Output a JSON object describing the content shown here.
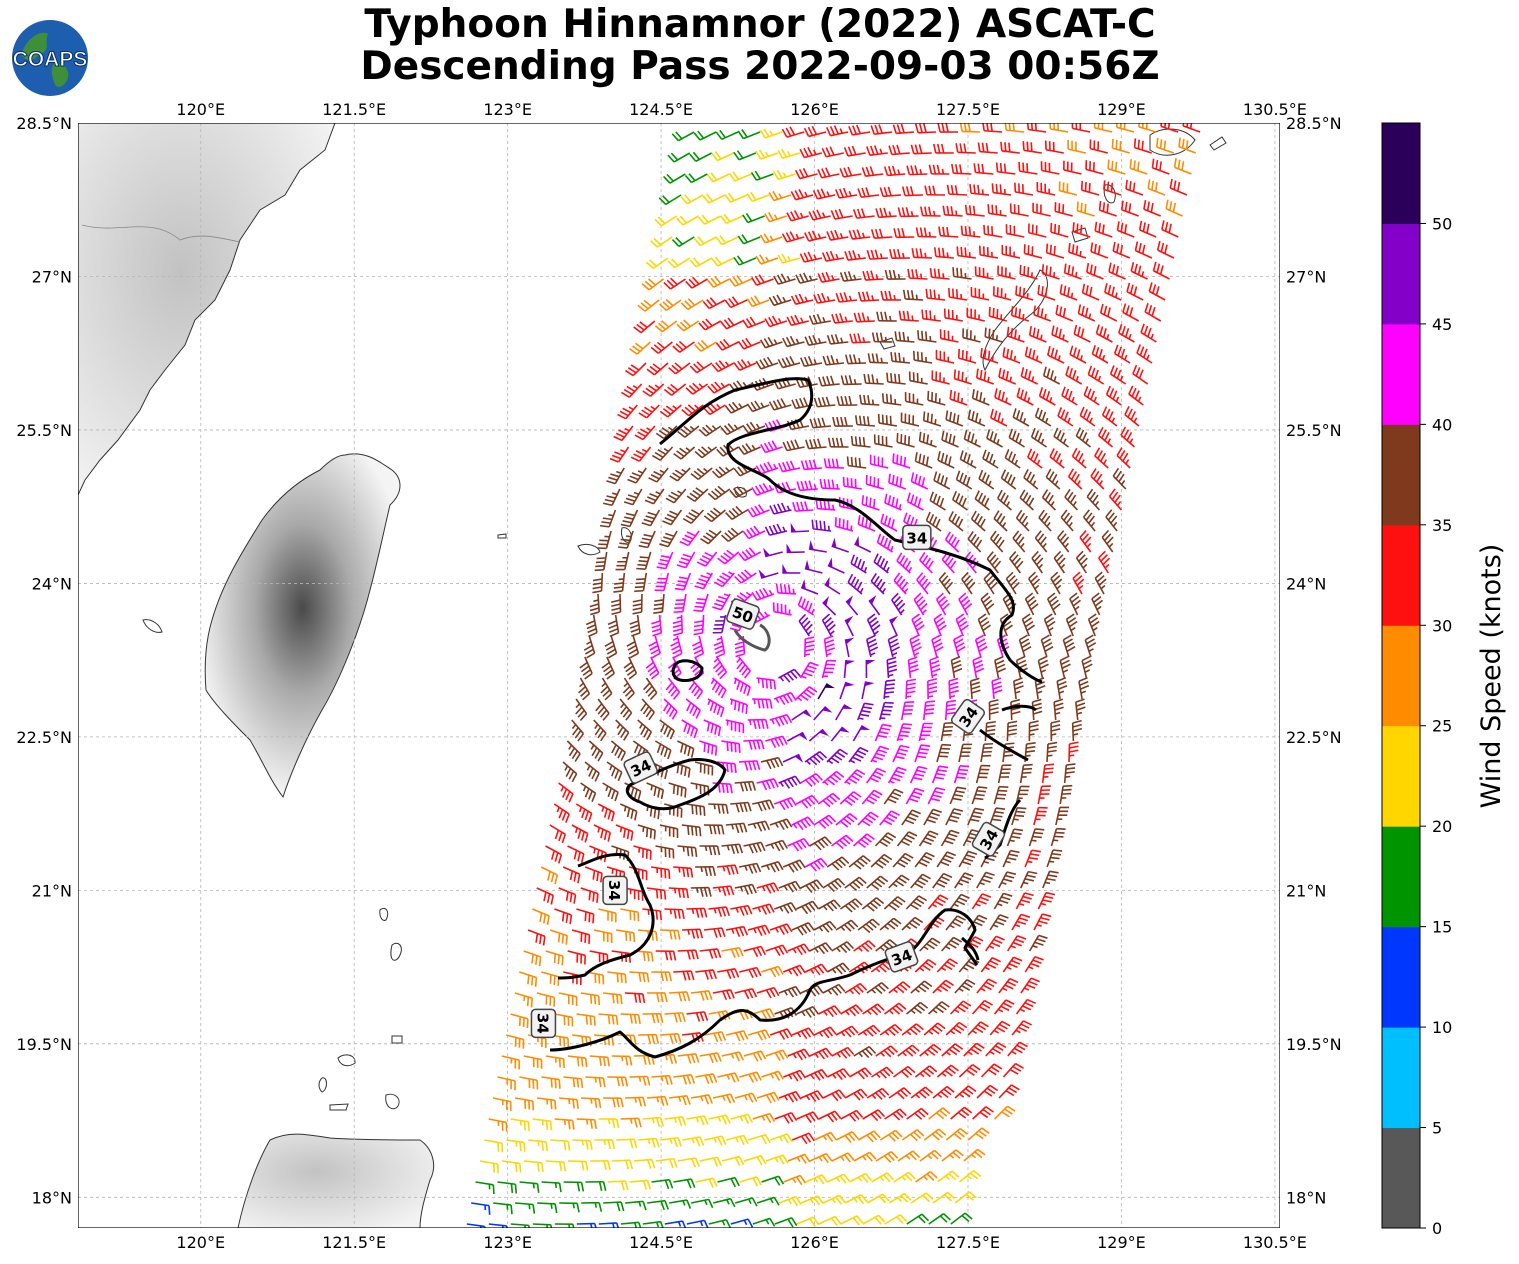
{
  "title": {
    "line1": "Typhoon Hinnamnor (2022) ASCAT-C",
    "line2": "Descending Pass 2022-09-03 00:56Z"
  },
  "logo": {
    "text": "COAPS",
    "icon": "globe-logo-icon"
  },
  "map": {
    "lon_range": [
      118.8,
      130.55
    ],
    "lat_range": [
      17.7,
      28.5
    ],
    "lon_ticks": [
      "120°E",
      "121.5°E",
      "123°E",
      "124.5°E",
      "126°E",
      "127.5°E",
      "129°E",
      "130.5°E"
    ],
    "lat_ticks": [
      "28.5°N",
      "27°N",
      "25.5°N",
      "24°N",
      "22.5°N",
      "21°N",
      "19.5°N",
      "18°N"
    ],
    "grid": true,
    "land_color": "#f2f2f2",
    "coastline_color": "#333333",
    "storm_center": {
      "lat": 23.4,
      "lon": 125.6
    },
    "contour_labels": [
      {
        "text": "34",
        "lat": 24.45,
        "lon": 127.0,
        "angle": 0
      },
      {
        "text": "50",
        "lat": 23.7,
        "lon": 125.3,
        "angle": 20
      },
      {
        "text": "34",
        "lat": 22.7,
        "lon": 127.5,
        "angle": -55
      },
      {
        "text": "34",
        "lat": 22.2,
        "lon": 124.3,
        "angle": -25
      },
      {
        "text": "34",
        "lat": 21.5,
        "lon": 127.7,
        "angle": -60
      },
      {
        "text": "34",
        "lat": 21.0,
        "lon": 124.05,
        "angle": 90
      },
      {
        "text": "34",
        "lat": 20.35,
        "lon": 126.85,
        "angle": -20
      },
      {
        "text": "34",
        "lat": 19.7,
        "lon": 123.35,
        "angle": 90
      }
    ]
  },
  "colorbar": {
    "label": "Wind Speed (knots)",
    "ticks": [
      "0",
      "5",
      "10",
      "15",
      "20",
      "25",
      "30",
      "35",
      "40",
      "45",
      "50"
    ],
    "colors": [
      "#585858",
      "#00bfff",
      "#0037ff",
      "#009400",
      "#ffd600",
      "#ff8c00",
      "#ff1010",
      "#7f3a1e",
      "#ff00ff",
      "#8300c8",
      "#2a005a"
    ],
    "range": [
      0,
      55
    ]
  }
}
